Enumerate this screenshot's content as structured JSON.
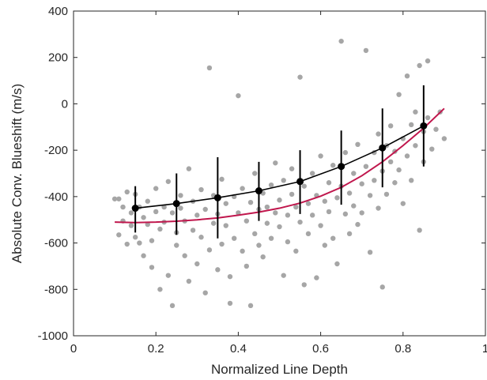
{
  "chart_data": {
    "type": "scatter",
    "xlabel": "Normalized Line Depth",
    "ylabel": "Absolute Conv. Blueshift (m/s)",
    "xlim": [
      0,
      1
    ],
    "ylim": [
      -1000,
      400
    ],
    "xticks": [
      0,
      0.2,
      0.4,
      0.6,
      0.8,
      1
    ],
    "xtick_labels": [
      "0",
      "0.2",
      "0.4",
      "0.6",
      "0.8",
      "1"
    ],
    "yticks": [
      -1000,
      -800,
      -600,
      -400,
      -200,
      0,
      200,
      400
    ],
    "ytick_labels": [
      "-1000",
      "-800",
      "-600",
      "-400",
      "-200",
      "0",
      "200",
      "400"
    ],
    "grid": false,
    "legend": "none",
    "scatter_color": "#a6a6a6",
    "binned_color": "#000000",
    "model_color": "#c0174d",
    "scatter_points": [
      [
        0.1,
        -410
      ],
      [
        0.11,
        -565
      ],
      [
        0.11,
        -410
      ],
      [
        0.12,
        -445
      ],
      [
        0.12,
        -505
      ],
      [
        0.13,
        -605
      ],
      [
        0.13,
        -380
      ],
      [
        0.14,
        -470
      ],
      [
        0.14,
        -525
      ],
      [
        0.15,
        -390
      ],
      [
        0.15,
        -575
      ],
      [
        0.16,
        -600
      ],
      [
        0.16,
        -445
      ],
      [
        0.17,
        -655
      ],
      [
        0.17,
        -490
      ],
      [
        0.18,
        -420
      ],
      [
        0.18,
        -520
      ],
      [
        0.19,
        -705
      ],
      [
        0.19,
        -590
      ],
      [
        0.2,
        -465
      ],
      [
        0.2,
        -365
      ],
      [
        0.21,
        -540
      ],
      [
        0.21,
        -800
      ],
      [
        0.22,
        -445
      ],
      [
        0.22,
        -510
      ],
      [
        0.23,
        -740
      ],
      [
        0.23,
        -335
      ],
      [
        0.24,
        -870
      ],
      [
        0.24,
        -470
      ],
      [
        0.25,
        -610
      ],
      [
        0.25,
        -555
      ],
      [
        0.26,
        -395
      ],
      [
        0.26,
        -450
      ],
      [
        0.27,
        -505
      ],
      [
        0.27,
        -655
      ],
      [
        0.28,
        -280
      ],
      [
        0.28,
        -765
      ],
      [
        0.29,
        -420
      ],
      [
        0.29,
        -545
      ],
      [
        0.3,
        -480
      ],
      [
        0.3,
        -690
      ],
      [
        0.31,
        -370
      ],
      [
        0.31,
        -575
      ],
      [
        0.32,
        -815
      ],
      [
        0.32,
        -455
      ],
      [
        0.33,
        -630
      ],
      [
        0.33,
        155
      ],
      [
        0.34,
        -515
      ],
      [
        0.34,
        -395
      ],
      [
        0.35,
        -715
      ],
      [
        0.35,
        -475
      ],
      [
        0.36,
        -605
      ],
      [
        0.36,
        -325
      ],
      [
        0.37,
        -430
      ],
      [
        0.37,
        -525
      ],
      [
        0.38,
        -860
      ],
      [
        0.38,
        -745
      ],
      [
        0.39,
        -400
      ],
      [
        0.39,
        -580
      ],
      [
        0.4,
        35
      ],
      [
        0.4,
        -470
      ],
      [
        0.41,
        -635
      ],
      [
        0.41,
        -365
      ],
      [
        0.42,
        -505
      ],
      [
        0.42,
        -700
      ],
      [
        0.43,
        -425
      ],
      [
        0.43,
        -870
      ],
      [
        0.44,
        -560
      ],
      [
        0.44,
        -300
      ],
      [
        0.45,
        -455
      ],
      [
        0.45,
        -610
      ],
      [
        0.46,
        -385
      ],
      [
        0.46,
        -660
      ],
      [
        0.47,
        -515
      ],
      [
        0.47,
        -445
      ],
      [
        0.48,
        -350
      ],
      [
        0.48,
        -580
      ],
      [
        0.49,
        -470
      ],
      [
        0.49,
        -255
      ],
      [
        0.5,
        -530
      ],
      [
        0.5,
        -415
      ],
      [
        0.51,
        -740
      ],
      [
        0.51,
        -330
      ],
      [
        0.52,
        -480
      ],
      [
        0.52,
        -595
      ],
      [
        0.53,
        -390
      ],
      [
        0.53,
        -280
      ],
      [
        0.54,
        -635
      ],
      [
        0.54,
        -445
      ],
      [
        0.55,
        -510
      ],
      [
        0.55,
        115
      ],
      [
        0.56,
        -355
      ],
      [
        0.56,
        -780
      ],
      [
        0.57,
        -430
      ],
      [
        0.57,
        -560
      ],
      [
        0.58,
        -300
      ],
      [
        0.58,
        -480
      ],
      [
        0.59,
        -395
      ],
      [
        0.59,
        -750
      ],
      [
        0.6,
        -525
      ],
      [
        0.6,
        -225
      ],
      [
        0.61,
        -420
      ],
      [
        0.61,
        -610
      ],
      [
        0.62,
        -340
      ],
      [
        0.62,
        -465
      ],
      [
        0.63,
        -580
      ],
      [
        0.63,
        -265
      ],
      [
        0.64,
        -405
      ],
      [
        0.64,
        -690
      ],
      [
        0.65,
        270
      ],
      [
        0.65,
        -355
      ],
      [
        0.66,
        -475
      ],
      [
        0.66,
        -210
      ],
      [
        0.67,
        -560
      ],
      [
        0.67,
        -385
      ],
      [
        0.68,
        -300
      ],
      [
        0.68,
        -440
      ],
      [
        0.69,
        -520
      ],
      [
        0.69,
        -175
      ],
      [
        0.7,
        -345
      ],
      [
        0.7,
        -470
      ],
      [
        0.71,
        230
      ],
      [
        0.71,
        -270
      ],
      [
        0.72,
        -395
      ],
      [
        0.72,
        -640
      ],
      [
        0.73,
        -210
      ],
      [
        0.73,
        -330
      ],
      [
        0.74,
        -450
      ],
      [
        0.74,
        -130
      ],
      [
        0.75,
        -290
      ],
      [
        0.75,
        -790
      ],
      [
        0.76,
        -390
      ],
      [
        0.76,
        -180
      ],
      [
        0.77,
        -250
      ],
      [
        0.77,
        -95
      ],
      [
        0.78,
        -340
      ],
      [
        0.78,
        -205
      ],
      [
        0.79,
        40
      ],
      [
        0.79,
        -285
      ],
      [
        0.8,
        -150
      ],
      [
        0.8,
        -430
      ],
      [
        0.81,
        -225
      ],
      [
        0.81,
        120
      ],
      [
        0.82,
        -90
      ],
      [
        0.82,
        -330
      ],
      [
        0.83,
        -180
      ],
      [
        0.83,
        -35
      ],
      [
        0.84,
        165
      ],
      [
        0.84,
        -545
      ],
      [
        0.85,
        -120
      ],
      [
        0.85,
        -250
      ],
      [
        0.86,
        185
      ],
      [
        0.86,
        -60
      ],
      [
        0.87,
        -195
      ],
      [
        0.88,
        -110
      ],
      [
        0.89,
        -35
      ],
      [
        0.9,
        -150
      ]
    ],
    "binned_means": {
      "x": [
        0.15,
        0.25,
        0.35,
        0.45,
        0.55,
        0.65,
        0.75,
        0.85
      ],
      "y": [
        -450,
        -430,
        -405,
        -375,
        -335,
        -270,
        -190,
        -95
      ],
      "y_low": [
        -555,
        -565,
        -580,
        -505,
        -475,
        -435,
        -360,
        -270
      ],
      "y_high": [
        -355,
        -300,
        -230,
        -250,
        -200,
        -115,
        -20,
        80
      ]
    },
    "model_curve": {
      "x": [
        0.1,
        0.15,
        0.2,
        0.25,
        0.3,
        0.35,
        0.4,
        0.45,
        0.5,
        0.55,
        0.6,
        0.65,
        0.7,
        0.75,
        0.8,
        0.85,
        0.9
      ],
      "y": [
        -510,
        -512,
        -510,
        -506,
        -500,
        -492,
        -480,
        -467,
        -450,
        -428,
        -398,
        -360,
        -310,
        -250,
        -180,
        -105,
        -20
      ]
    }
  }
}
